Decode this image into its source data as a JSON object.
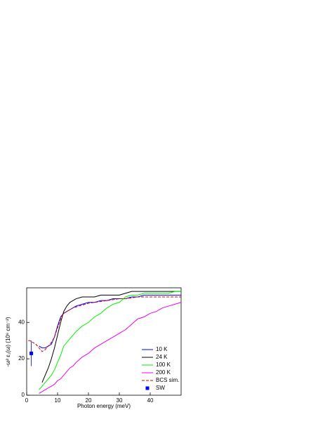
{
  "chart_data": {
    "type": "line",
    "xlabel": "Photon energy (meV)",
    "ylabel": "-ω² ε₁(ω) (10⁶ cm⁻²)",
    "x": [
      0.5,
      1,
      2,
      3,
      4,
      5,
      6,
      7,
      8,
      9,
      10,
      11,
      12,
      13,
      14,
      15,
      16,
      18,
      20,
      22,
      24,
      26,
      28,
      30,
      32,
      34,
      36,
      38,
      40,
      42,
      44,
      46,
      48,
      50
    ],
    "series": [
      {
        "name": "10 K",
        "color": "#0000ff",
        "values": [
          null,
          null,
          null,
          null,
          27,
          26,
          26,
          27,
          28,
          32,
          38,
          43,
          45,
          46,
          47,
          48,
          49,
          50,
          51,
          51,
          52,
          52,
          53,
          53,
          53,
          54,
          54,
          55,
          55,
          55,
          55,
          55,
          55,
          55
        ]
      },
      {
        "name": "24 K",
        "color": "#000000",
        "values": [
          null,
          null,
          null,
          null,
          null,
          7,
          11,
          15,
          20,
          26,
          33,
          40,
          46,
          49,
          51,
          52,
          53,
          54,
          54,
          54,
          55,
          55,
          55,
          55,
          56,
          57,
          57,
          57,
          57,
          57,
          57,
          57,
          57,
          57
        ]
      },
      {
        "name": "100 K",
        "color": "#00ee00",
        "values": [
          null,
          null,
          null,
          null,
          3,
          5,
          7,
          9,
          11,
          14,
          18,
          22,
          27,
          29,
          31,
          33,
          35,
          38,
          40,
          43,
          45,
          48,
          50,
          51,
          54,
          55,
          55,
          56,
          56,
          56,
          56,
          56,
          57,
          57
        ]
      },
      {
        "name": "200 K",
        "color": "#ee00ee",
        "values": [
          null,
          null,
          null,
          null,
          1,
          2,
          3,
          4,
          5,
          6,
          8,
          9,
          11,
          13,
          15,
          16,
          18,
          21,
          23,
          26,
          28,
          30,
          32,
          34,
          36,
          39,
          42,
          43,
          45,
          46,
          48,
          49,
          50,
          51
        ]
      },
      {
        "name": "BCS sim.",
        "color": "#cc0000",
        "dashed": true,
        "values": [
          30,
          30,
          29,
          28,
          26,
          24,
          25,
          27,
          29,
          32,
          37,
          42,
          45,
          46,
          47,
          48,
          48.5,
          49.5,
          50.5,
          51,
          51.5,
          52,
          52.5,
          53,
          53,
          53.5,
          54,
          54,
          54,
          54,
          54,
          54,
          54,
          54
        ]
      }
    ],
    "point": {
      "name": "SW",
      "color": "#0000ff",
      "x": 1.5,
      "value": 23,
      "error": 7
    },
    "xlim": [
      0,
      50
    ],
    "ylim": [
      0,
      59
    ],
    "xticks": [
      0,
      10,
      20,
      30,
      40
    ],
    "yticks": [
      0,
      20,
      40
    ]
  }
}
